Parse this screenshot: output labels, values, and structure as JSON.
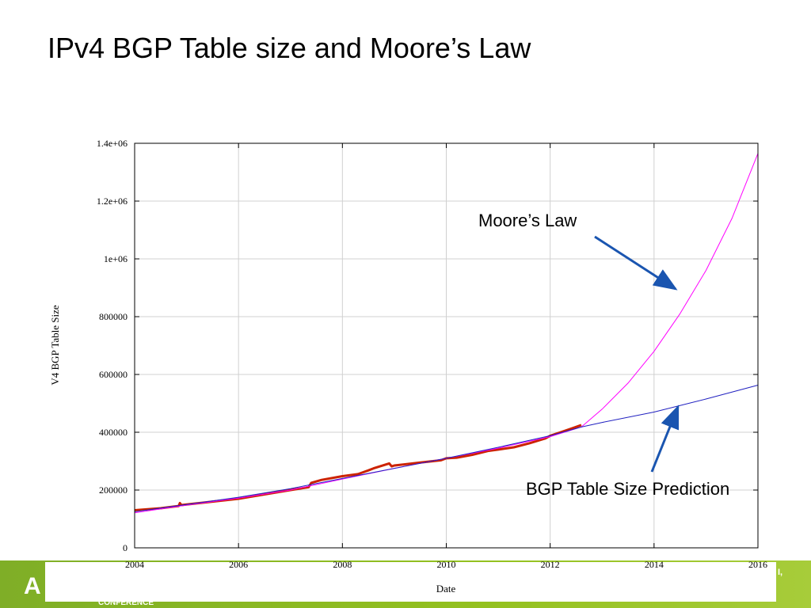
{
  "slide": {
    "title": "IPv4 BGP Table size and Moore’s Law"
  },
  "footer": {
    "logo_text": "A",
    "conference_text": "CONFERENCE",
    "right_text": "I,"
  },
  "chart_data": {
    "type": "line",
    "title": "",
    "xlabel": "Date",
    "ylabel": "V4 BGP Table Size",
    "xlim": [
      2004,
      2016
    ],
    "ylim": [
      0,
      1400000
    ],
    "x_ticks": [
      2004,
      2006,
      2008,
      2010,
      2012,
      2014,
      2016
    ],
    "x_tick_labels": [
      "2004",
      "2006",
      "2008",
      "2010",
      "2012",
      "2014",
      "2016"
    ],
    "y_ticks": [
      0,
      200000,
      400000,
      600000,
      800000,
      1000000,
      1200000,
      1400000
    ],
    "y_tick_labels": [
      "0",
      "200000",
      "400000",
      "600000",
      "800000",
      "1e+06",
      "1.2e+06",
      "1.4e+06"
    ],
    "grid": true,
    "series": [
      {
        "name": "",
        "color": "#cc2200",
        "x": [
          2004.0,
          2004.5,
          2004.85,
          2004.87,
          2004.9,
          2005.0,
          2005.5,
          2006.0,
          2006.5,
          2007.0,
          2007.35,
          2007.4,
          2007.6,
          2008.0,
          2008.3,
          2008.5,
          2008.6,
          2008.9,
          2008.95,
          2009.0,
          2009.5,
          2009.9,
          2010.0,
          2010.2,
          2010.5,
          2010.8,
          2011.0,
          2011.3,
          2011.6,
          2011.9,
          2012.0,
          2012.2,
          2012.4,
          2012.6
        ],
        "values": [
          130000,
          137000,
          145000,
          155000,
          148000,
          150000,
          160000,
          170000,
          185000,
          200000,
          210000,
          225000,
          235000,
          248000,
          255000,
          268000,
          275000,
          292000,
          282000,
          285000,
          295000,
          303000,
          310000,
          312000,
          322000,
          335000,
          340000,
          348000,
          362000,
          378000,
          388000,
          400000,
          412000,
          425000
        ]
      },
      {
        "name": "",
        "color": "#ff00ff",
        "x": [
          2004.0,
          2005.0,
          2006.0,
          2007.0,
          2008.0,
          2009.0,
          2010.0,
          2011.0,
          2012.0,
          2012.6,
          2013.0,
          2013.5,
          2014.0,
          2014.5,
          2015.0,
          2015.5,
          2016.0
        ],
        "values": [
          121000,
          148000,
          172000,
          200000,
          238000,
          275000,
          310000,
          345000,
          385000,
          418000,
          480000,
          570000,
          680000,
          810000,
          960000,
          1140000,
          1365000
        ]
      },
      {
        "name": "",
        "color": "#2020c0",
        "x": [
          2004.0,
          2005.0,
          2006.0,
          2007.0,
          2008.0,
          2009.0,
          2010.0,
          2011.0,
          2012.0,
          2012.6,
          2013.0,
          2014.0,
          2015.0,
          2016.0
        ],
        "values": [
          125000,
          150000,
          175000,
          205000,
          240000,
          275000,
          310000,
          348000,
          388000,
          418000,
          434000,
          470000,
          515000,
          563000
        ]
      }
    ],
    "annotations": [
      {
        "label": "Moore’s Law",
        "arrow_color": "#1a55b0"
      },
      {
        "label": "BGP Table Size Prediction",
        "arrow_color": "#1a55b0"
      }
    ]
  }
}
